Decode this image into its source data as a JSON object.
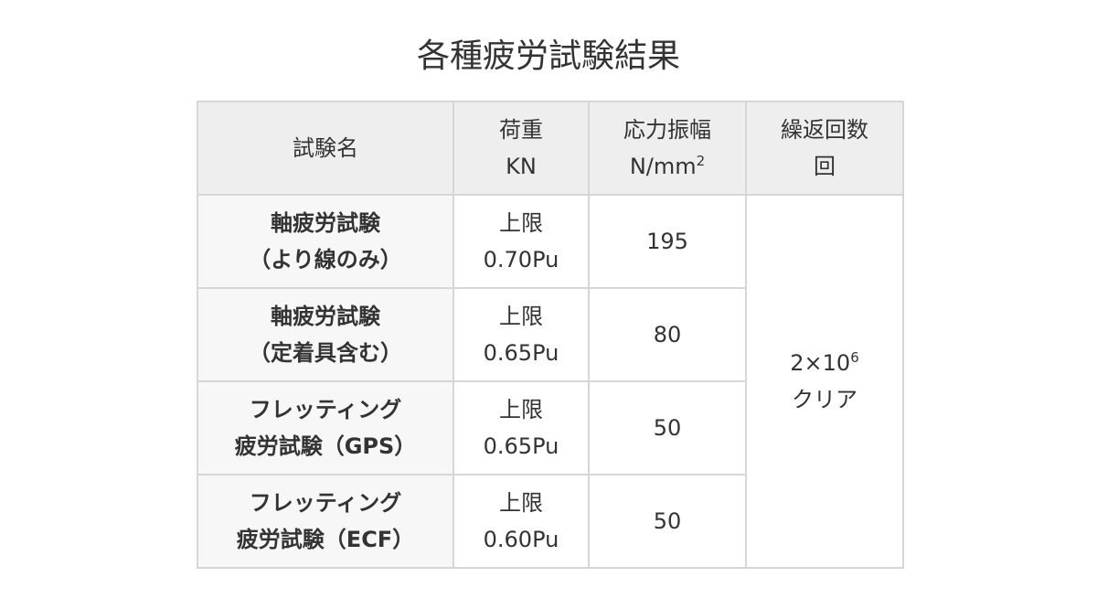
{
  "title": "各種疲労試験結果",
  "table": {
    "headers": {
      "name": "試験名",
      "load_line1": "荷重",
      "load_line2": "KN",
      "stress_line1": "応力振幅",
      "stress_line2_base": "N/mm",
      "stress_line2_sup": "2",
      "cycles_line1": "繰返回数",
      "cycles_line2": "回"
    },
    "rows": [
      {
        "name_line1": "軸疲労試験",
        "name_line2": "（より線のみ）",
        "load_line1": "上限",
        "load_line2": "0.70Pu",
        "stress": "195"
      },
      {
        "name_line1": "軸疲労試験",
        "name_line2": "（定着具含む）",
        "load_line1": "上限",
        "load_line2": "0.65Pu",
        "stress": "80"
      },
      {
        "name_line1": "フレッティング",
        "name_line2": "疲労試験（GPS）",
        "load_line1": "上限",
        "load_line2": "0.65Pu",
        "stress": "50"
      },
      {
        "name_line1": "フレッティング",
        "name_line2": "疲労試験（ECF）",
        "load_line1": "上限",
        "load_line2": "0.60Pu",
        "stress": "50"
      }
    ],
    "cycles": {
      "base": "2×10",
      "sup": "6",
      "line2": "クリア"
    }
  }
}
